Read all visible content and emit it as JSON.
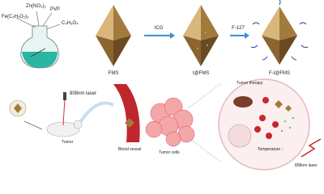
{
  "synthesis": {
    "reagents": [
      "Fe(C₅H₇O₂)₃",
      "Zn(NO₃)₂",
      "PVP",
      "C₄H₆O₄"
    ],
    "products": [
      "FMS",
      "I@FMS",
      "F-I@FMS"
    ],
    "steps": [
      "ICG",
      "F-127"
    ]
  },
  "treatment": {
    "laser": "808nm laser",
    "mouse": "Tumor",
    "vessel": "Blood vessel",
    "cells": "Tumor cells",
    "therapy": "Tumor therapy",
    "temperature": "Temperature ↑",
    "laser_right": "808nm laser"
  }
}
